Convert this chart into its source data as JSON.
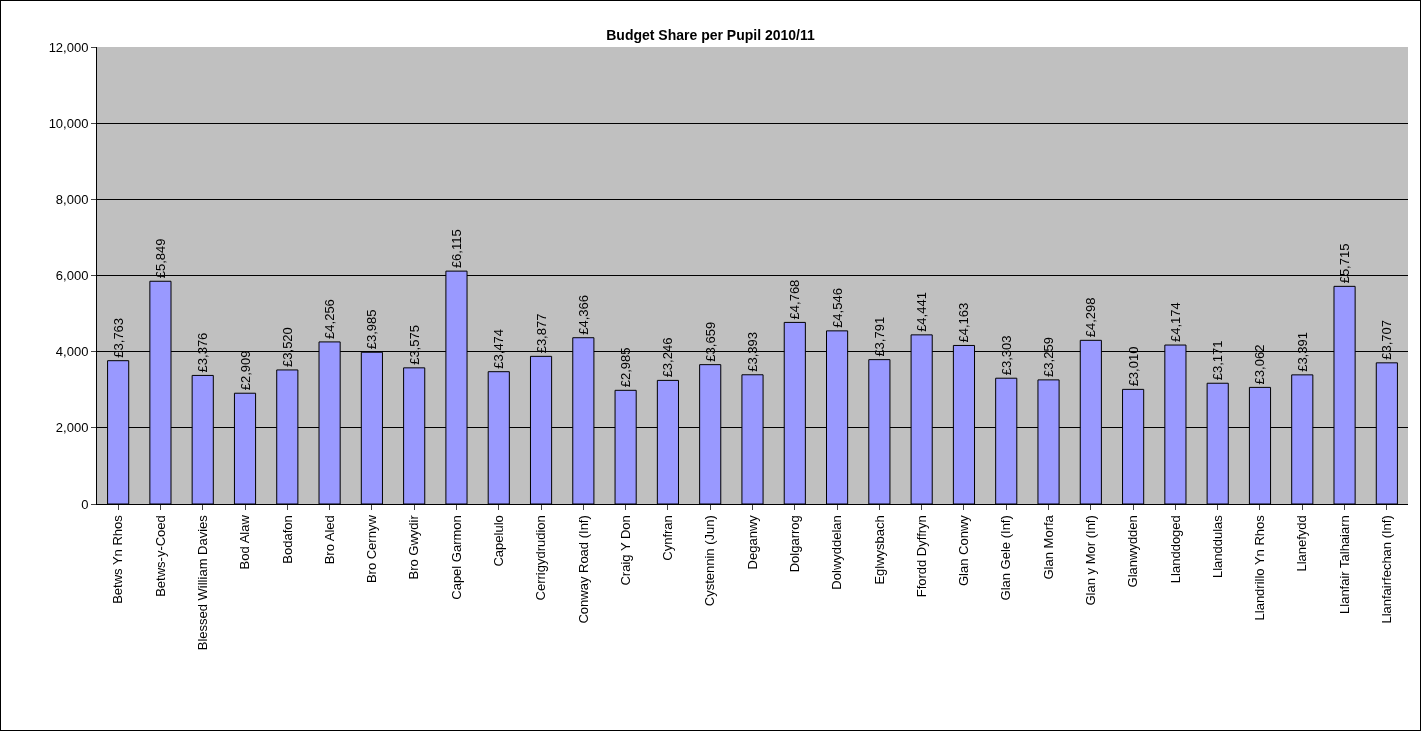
{
  "chart_data": {
    "type": "bar",
    "title": "Budget Share per Pupil 2010/11",
    "categories": [
      "Betws Yn Rhos",
      "Betws-y-Coed",
      "Blessed William Davies",
      "Bod Alaw",
      "Bodafon",
      "Bro Aled",
      "Bro Cernyw",
      "Bro Gwydir",
      "Capel Garmon",
      "Capelulo",
      "Cerrigydrudion",
      "Conway Road (Inf)",
      "Craig Y Don",
      "Cynfran",
      "Cystennin (Jun)",
      "Deganwy",
      "Dolgarrog",
      "Dolwyddelan",
      "Eglwysbach",
      "Ffordd Dyffryn",
      "Glan Conwy",
      "Glan Gele (Inf)",
      "Glan Morfa",
      "Glan y Mor (Inf)",
      "Glanwydden",
      "Llanddoged",
      "Llanddulas",
      "Llandrillo Yn Rhos",
      "Llanefydd",
      "Llanfair Talhaiarn",
      "Llanfairfechan (Inf)"
    ],
    "values": [
      3763,
      5849,
      3376,
      2909,
      3520,
      4256,
      3985,
      3575,
      6115,
      3474,
      3877,
      4366,
      2985,
      3246,
      3659,
      3393,
      4768,
      4546,
      3791,
      4441,
      4163,
      3303,
      3259,
      4298,
      3010,
      4174,
      3171,
      3062,
      3391,
      5715,
      3707
    ],
    "value_labels": [
      "£3,763",
      "£5,849",
      "£3,376",
      "£2,909",
      "£3,520",
      "£4,256",
      "£3,985",
      "£3,575",
      "£6,115",
      "£3,474",
      "£3,877",
      "£4,366",
      "£2,985",
      "£3,246",
      "£3,659",
      "£3,393",
      "£4,768",
      "£4,546",
      "£3,791",
      "£4,441",
      "£4,163",
      "£3,303",
      "£3,259",
      "£4,298",
      "£3,010",
      "£4,174",
      "£3,171",
      "£3,062",
      "£3,391",
      "£5,715",
      "£3,707"
    ],
    "color": "#9999ff",
    "ylim": [
      0,
      12000
    ],
    "yticks": [
      0,
      {
        "value": 2000,
        "label": "2,000"
      },
      {
        "value": 4000,
        "label": "4,000"
      },
      {
        "value": 6000,
        "label": "6,000"
      },
      {
        "value": 8000,
        "label": "8,000"
      },
      {
        "value": 10000,
        "label": "10,000"
      },
      {
        "value": 12000,
        "label": "12,000"
      }
    ],
    "grid": "y"
  }
}
